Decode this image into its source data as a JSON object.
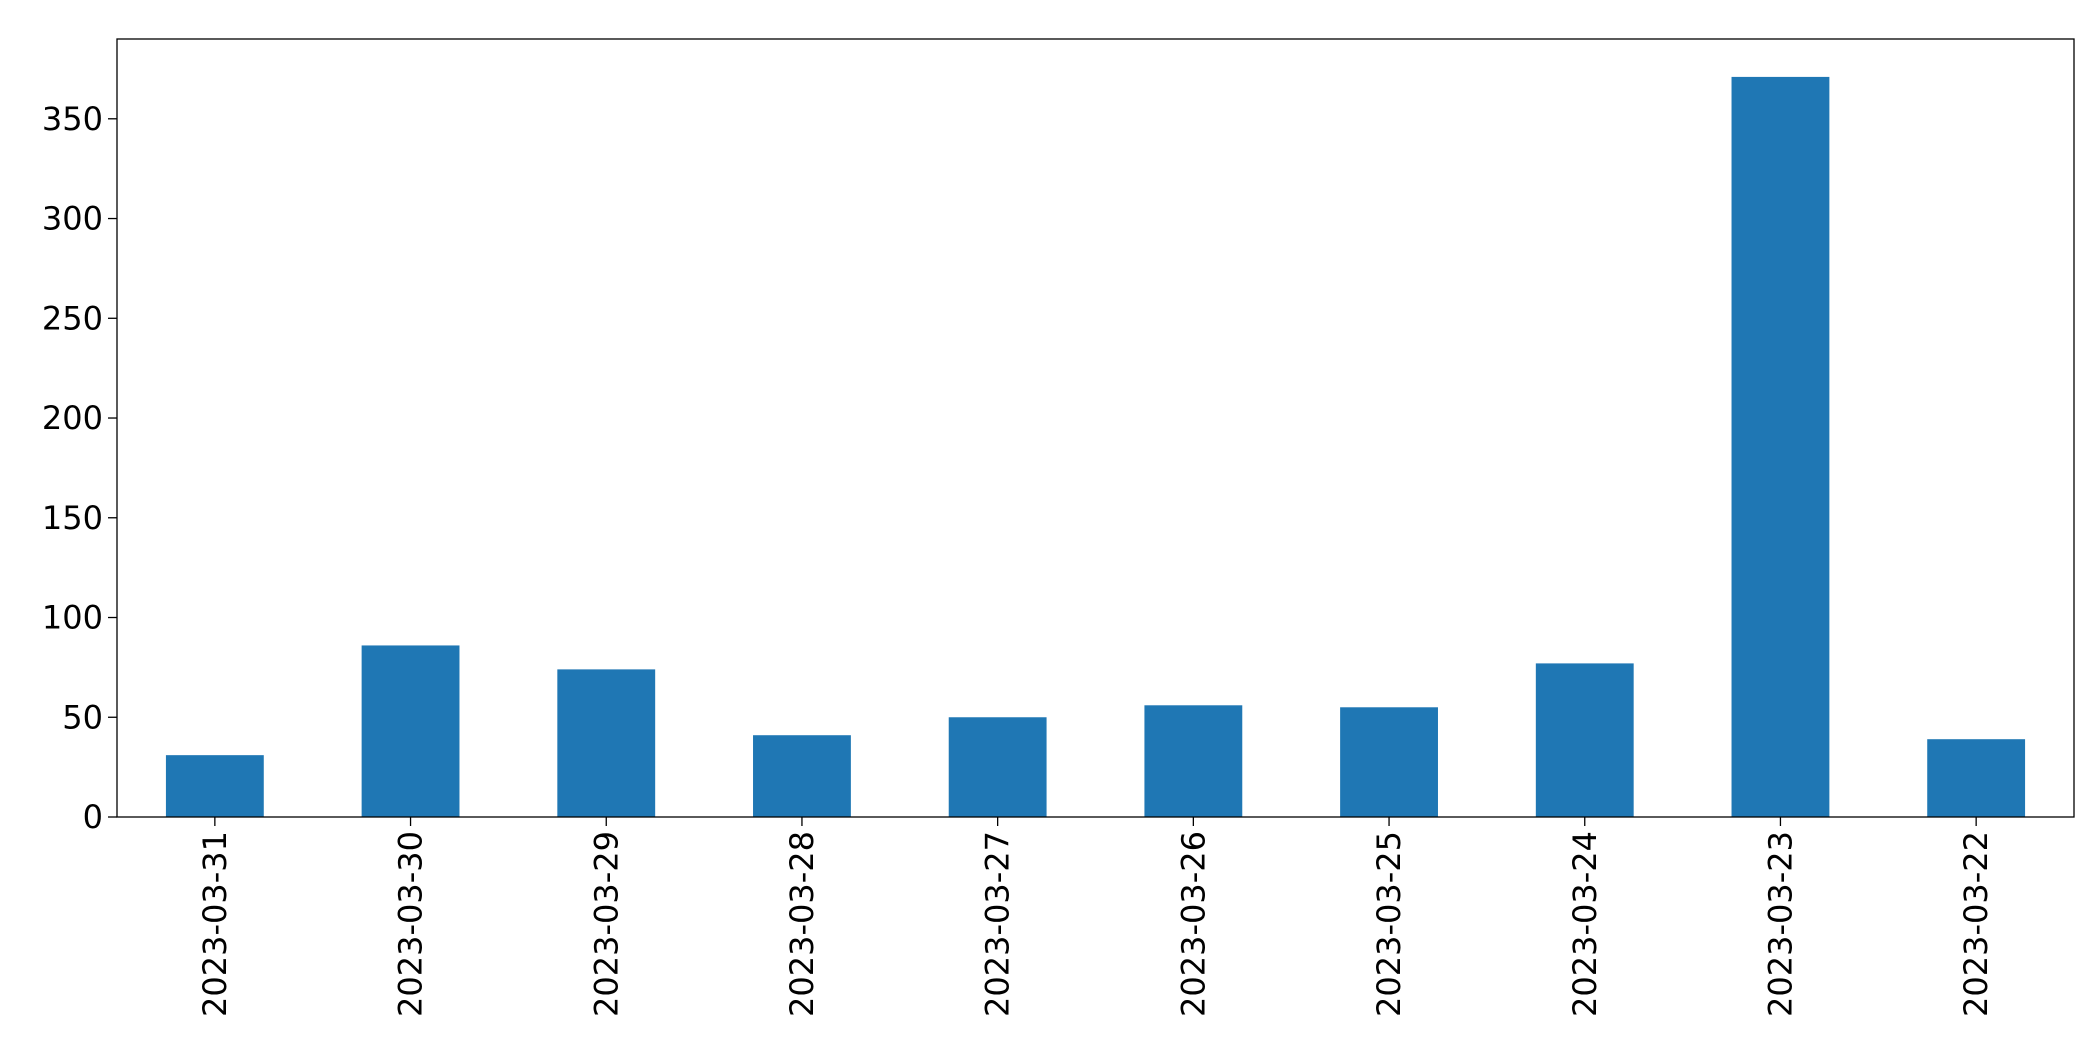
{
  "chart_data": {
    "type": "bar",
    "categories": [
      "2023-03-31",
      "2023-03-30",
      "2023-03-29",
      "2023-03-28",
      "2023-03-27",
      "2023-03-26",
      "2023-03-25",
      "2023-03-24",
      "2023-03-23",
      "2023-03-22"
    ],
    "values": [
      31,
      86,
      74,
      41,
      50,
      56,
      55,
      77,
      371,
      39
    ],
    "color": "#1f77b4",
    "ylim": [
      0,
      390
    ],
    "yticks": [
      0,
      50,
      100,
      150,
      200,
      250,
      300,
      350
    ],
    "grid": false
  }
}
